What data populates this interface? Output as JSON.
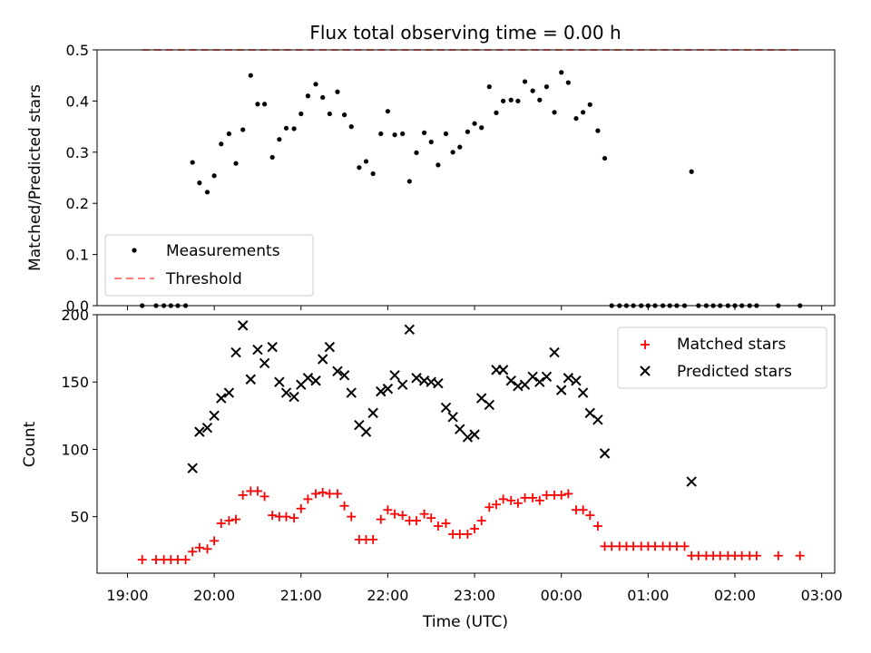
{
  "title": "Flux total observing time = 0.00 h",
  "chart_data": [
    {
      "type": "scatter",
      "panel": "top",
      "xlabel": "",
      "ylabel": "Matched/Predicted stars",
      "xlim": [
        18.65,
        27.15
      ],
      "ylim": [
        0,
        0.5
      ],
      "yticks": [
        "0.0",
        "0.1",
        "0.2",
        "0.3",
        "0.4",
        "0.5"
      ],
      "yticks_values": [
        0,
        0.1,
        0.2,
        0.3,
        0.4,
        0.5
      ],
      "legend": {
        "placement": "lower-left",
        "entries": [
          "Measurements",
          "Threshold"
        ]
      },
      "series": [
        {
          "name": "Measurements",
          "marker": "dot",
          "color": "#000000",
          "x": [
            19.17,
            19.33,
            19.42,
            19.5,
            19.58,
            19.67,
            19.75,
            19.83,
            19.92,
            20.0,
            20.08,
            20.17,
            20.25,
            20.33,
            20.42,
            20.5,
            20.58,
            20.67,
            20.75,
            20.83,
            20.92,
            21.0,
            21.08,
            21.17,
            21.25,
            21.33,
            21.42,
            21.5,
            21.58,
            21.67,
            21.75,
            21.83,
            21.92,
            22.0,
            22.08,
            22.17,
            22.25,
            22.33,
            22.42,
            22.5,
            22.58,
            22.67,
            22.75,
            22.83,
            22.92,
            23.0,
            23.08,
            23.17,
            23.25,
            23.33,
            23.42,
            23.5,
            23.58,
            23.67,
            23.75,
            23.83,
            23.92,
            24.0,
            24.08,
            24.17,
            24.25,
            24.33,
            24.42,
            24.5,
            24.58,
            24.67,
            24.75,
            24.83,
            24.92,
            25.0,
            25.08,
            25.17,
            25.25,
            25.33,
            25.42,
            25.5,
            25.58,
            25.67,
            25.75,
            25.83,
            25.92,
            26.0,
            26.08,
            26.17,
            26.25,
            26.5,
            26.75
          ],
          "y": [
            0.0,
            0.0,
            0.0,
            0.0,
            0.0,
            0.0,
            0.28,
            0.24,
            0.222,
            0.254,
            0.316,
            0.336,
            0.278,
            0.344,
            0.45,
            0.394,
            0.394,
            0.29,
            0.325,
            0.347,
            0.346,
            0.375,
            0.41,
            0.433,
            0.407,
            0.375,
            0.418,
            0.373,
            0.35,
            0.27,
            0.282,
            0.258,
            0.336,
            0.38,
            0.334,
            0.336,
            0.243,
            0.299,
            0.338,
            0.32,
            0.275,
            0.336,
            0.3,
            0.31,
            0.34,
            0.356,
            0.348,
            0.428,
            0.377,
            0.4,
            0.402,
            0.4,
            0.438,
            0.42,
            0.402,
            0.428,
            0.378,
            0.456,
            0.436,
            0.366,
            0.378,
            0.393,
            0.342,
            0.288,
            0.0,
            0.0,
            0.0,
            0.0,
            0.0,
            0.0,
            0.0,
            0.0,
            0.0,
            0.0,
            0.0,
            0.262,
            0.0,
            0.0,
            0.0,
            0.0,
            0.0,
            0.0,
            0.0,
            0.0,
            0.0,
            0.0,
            0.0
          ]
        },
        {
          "name": "Threshold",
          "marker": "dashed-line",
          "color": "#ff7f7f",
          "x": [
            19.17,
            26.75
          ],
          "y": [
            0.5,
            0.5
          ]
        }
      ]
    },
    {
      "type": "scatter",
      "panel": "bottom",
      "xlabel": "Time (UTC)",
      "ylabel": "Count",
      "xlim": [
        18.65,
        27.15
      ],
      "ylim": [
        8,
        200
      ],
      "yticks": [
        "50",
        "100",
        "150",
        "200"
      ],
      "yticks_values": [
        50,
        100,
        150,
        200
      ],
      "xticks": [
        "19:00",
        "20:00",
        "21:00",
        "22:00",
        "23:00",
        "00:00",
        "01:00",
        "02:00",
        "03:00"
      ],
      "xticks_values": [
        19,
        20,
        21,
        22,
        23,
        24,
        25,
        26,
        27
      ],
      "legend": {
        "placement": "top-right",
        "entries": [
          "Matched stars",
          "Predicted stars"
        ]
      },
      "series": [
        {
          "name": "Matched stars",
          "marker": "plus",
          "color": "#ff0000",
          "x": [
            19.17,
            19.33,
            19.42,
            19.5,
            19.58,
            19.67,
            19.75,
            19.83,
            19.92,
            20.0,
            20.08,
            20.17,
            20.25,
            20.33,
            20.42,
            20.5,
            20.58,
            20.67,
            20.75,
            20.83,
            20.92,
            21.0,
            21.08,
            21.17,
            21.25,
            21.33,
            21.42,
            21.5,
            21.58,
            21.67,
            21.75,
            21.83,
            21.92,
            22.0,
            22.08,
            22.17,
            22.25,
            22.33,
            22.42,
            22.5,
            22.58,
            22.67,
            22.75,
            22.83,
            22.92,
            23.0,
            23.08,
            23.17,
            23.25,
            23.33,
            23.42,
            23.5,
            23.58,
            23.67,
            23.75,
            23.83,
            23.92,
            24.0,
            24.08,
            24.17,
            24.25,
            24.33,
            24.42,
            24.5,
            24.58,
            24.67,
            24.75,
            24.83,
            24.92,
            25.0,
            25.08,
            25.17,
            25.25,
            25.33,
            25.42,
            25.5,
            25.58,
            25.67,
            25.75,
            25.83,
            25.92,
            26.0,
            26.08,
            26.17,
            26.25,
            26.5,
            26.75
          ],
          "y": [
            18,
            18,
            18,
            18,
            18,
            18,
            24,
            27,
            26,
            32,
            45,
            47,
            48,
            66,
            69,
            69,
            65,
            51,
            50,
            50,
            49,
            56,
            63,
            67,
            68,
            67,
            67,
            58,
            50,
            33,
            33,
            33,
            48,
            55,
            52,
            51,
            47,
            47,
            52,
            49,
            43,
            45,
            37,
            37,
            37,
            41,
            47,
            57,
            59,
            63,
            62,
            60,
            64,
            64,
            62,
            66,
            66,
            66,
            67,
            55,
            55,
            51,
            43,
            28,
            28,
            28,
            28,
            28,
            28,
            28,
            28,
            28,
            28,
            28,
            28,
            21,
            21,
            21,
            21,
            21,
            21,
            21,
            21,
            21,
            21,
            21,
            21
          ]
        },
        {
          "name": "Predicted stars",
          "marker": "x",
          "color": "#000000",
          "x": [
            19.75,
            19.83,
            19.92,
            20.0,
            20.08,
            20.17,
            20.25,
            20.33,
            20.42,
            20.5,
            20.58,
            20.67,
            20.75,
            20.83,
            20.92,
            21.0,
            21.08,
            21.17,
            21.25,
            21.33,
            21.42,
            21.5,
            21.58,
            21.67,
            21.75,
            21.83,
            21.92,
            22.0,
            22.08,
            22.17,
            22.25,
            22.33,
            22.42,
            22.5,
            22.58,
            22.67,
            22.75,
            22.83,
            22.92,
            23.0,
            23.08,
            23.17,
            23.25,
            23.33,
            23.42,
            23.5,
            23.58,
            23.67,
            23.75,
            23.83,
            23.92,
            24.0,
            24.08,
            24.17,
            24.25,
            24.33,
            24.42,
            24.5,
            25.5
          ],
          "y": [
            86,
            113,
            116,
            125,
            138,
            142,
            172,
            192,
            152,
            174,
            164,
            176,
            150,
            142,
            139,
            148,
            153,
            151,
            167,
            176,
            158,
            155,
            142,
            118,
            113,
            127,
            143,
            145,
            155,
            148,
            189,
            153,
            151,
            150,
            149,
            131,
            124,
            115,
            109,
            111,
            138,
            133,
            159,
            159,
            151,
            147,
            148,
            154,
            150,
            154,
            172,
            144,
            153,
            151,
            142,
            127,
            122,
            97,
            76
          ]
        }
      ]
    }
  ]
}
